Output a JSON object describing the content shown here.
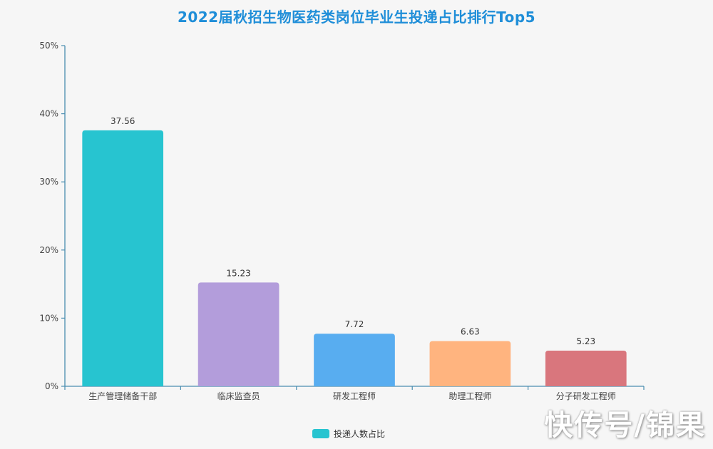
{
  "chart_data": {
    "type": "bar",
    "title": "2022届秋招生物医药类岗位毕业生投递占比排行Top5",
    "categories": [
      "生产管理储备干部",
      "临床监查员",
      "研发工程师",
      "助理工程师",
      "分子研发工程师"
    ],
    "series": [
      {
        "name": "投递人数占比",
        "values": [
          37.56,
          15.23,
          7.72,
          6.63,
          5.23
        ],
        "colors": [
          "#27c4d0",
          "#b39ddb",
          "#58adf0",
          "#ffb47f",
          "#d9767d"
        ]
      }
    ],
    "ylim": [
      0,
      50
    ],
    "yticks": [
      "0%",
      "10%",
      "20%",
      "30%",
      "40%",
      "50%"
    ],
    "grid": false,
    "legend_position": "bottom-center"
  },
  "legend": {
    "label": "投递人数占比",
    "color": "#27c4d0"
  },
  "watermark": {
    "text": "快传号/锦果",
    "badge": "锦果"
  }
}
